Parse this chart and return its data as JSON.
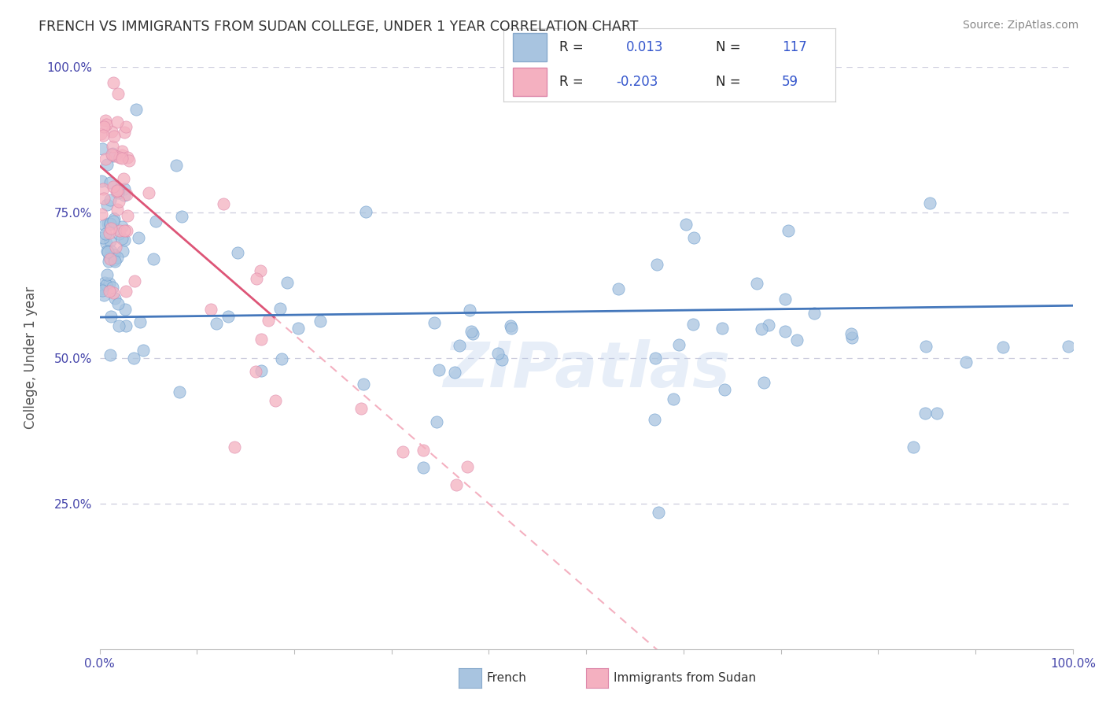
{
  "title": "FRENCH VS IMMIGRANTS FROM SUDAN COLLEGE, UNDER 1 YEAR CORRELATION CHART",
  "source_text": "Source: ZipAtlas.com",
  "ylabel": "College, Under 1 year",
  "xlim": [
    0.0,
    100.0
  ],
  "ylim": [
    0.0,
    100.0
  ],
  "watermark": "ZIPatlas",
  "french_color": "#a8c4e0",
  "french_edge_color": "#6699cc",
  "sudan_color": "#f4b0c0",
  "sudan_edge_color": "#dd88aa",
  "french_line_color": "#4477bb",
  "sudan_line_color": "#dd5577",
  "sudan_line_dashed_color": "#f4b0c0",
  "background_color": "#ffffff",
  "grid_color": "#ccccdd",
  "french_R": 0.013,
  "french_N": 117,
  "sudan_R": -0.203,
  "sudan_N": 59,
  "title_color": "#333333",
  "source_color": "#888888",
  "ylabel_color": "#555555",
  "tick_color": "#4444aa",
  "legend_blue_color": "#3355cc",
  "legend_R_label_color": "#222222",
  "french_line_y_intercept": 57.0,
  "french_line_slope": 0.02,
  "sudan_line_y_intercept": 83.0,
  "sudan_line_slope": -1.45
}
